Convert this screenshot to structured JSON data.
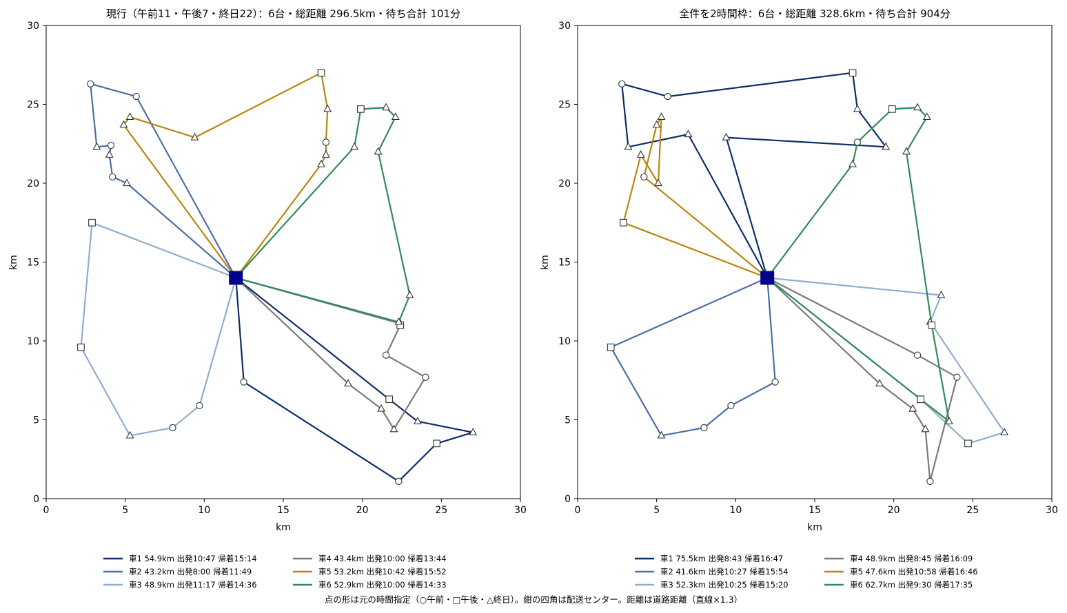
{
  "footnote": "点の形は元の時間指定（○午前・□午後・△終日）。紺の四角は配送センター。距離は道路距離（直線×1.3）",
  "chart_data": [
    {
      "type": "scatter",
      "title": "現行（午前11・午後7・終日22）：6台・総距離 296.5km・待ち合計 101分",
      "xlabel": "km",
      "ylabel": "km",
      "xlim": [
        0,
        30
      ],
      "ylim": [
        0,
        30
      ],
      "xticks": [
        "0",
        "5",
        "10",
        "15",
        "20",
        "25",
        "30"
      ],
      "yticks": [
        "0",
        "5",
        "10",
        "15",
        "20",
        "25",
        "30"
      ],
      "grid": false,
      "legend_position": "bottom",
      "depot": [
        12,
        14
      ],
      "routes": [
        {
          "name": "車1 54.9km 出発10:47 帰着15:14",
          "color": "#0b2d6b",
          "stops": [
            [
              12.5,
              7.4,
              "o"
            ],
            [
              22.3,
              1.1,
              "o"
            ],
            [
              24.7,
              3.5,
              "s"
            ],
            [
              27.0,
              4.2,
              "^"
            ],
            [
              23.5,
              4.9,
              "^"
            ],
            [
              21.7,
              6.3,
              "s"
            ]
          ]
        },
        {
          "name": "車2 43.2km 出発8:00 帰着11:49",
          "color": "#4a6fa5",
          "stops": [
            [
              5.7,
              25.5,
              "o"
            ],
            [
              2.8,
              26.3,
              "o"
            ],
            [
              3.2,
              22.3,
              "^"
            ],
            [
              4.1,
              22.4,
              "o"
            ],
            [
              4.0,
              21.8,
              "^"
            ],
            [
              4.2,
              20.4,
              "o"
            ],
            [
              5.1,
              20.0,
              "^"
            ]
          ]
        },
        {
          "name": "車3 48.9km 出発11:17 帰着14:36",
          "color": "#8fadd1",
          "stops": [
            [
              2.9,
              17.5,
              "s"
            ],
            [
              2.2,
              9.6,
              "s"
            ],
            [
              5.3,
              4.0,
              "^"
            ],
            [
              8.0,
              4.5,
              "o"
            ],
            [
              9.7,
              5.9,
              "o"
            ]
          ]
        },
        {
          "name": "車4 43.4km 出発10:00 帰着13:44",
          "color": "#7a7a7a",
          "stops": [
            [
              22.4,
              11.1,
              "^"
            ],
            [
              22.4,
              11.0,
              "s"
            ],
            [
              21.5,
              9.1,
              "o"
            ],
            [
              24.0,
              7.7,
              "o"
            ],
            [
              22.0,
              4.4,
              "^"
            ],
            [
              21.2,
              5.7,
              "^"
            ],
            [
              19.1,
              7.3,
              "^"
            ]
          ]
        },
        {
          "name": "車5 53.2km 出発10:42 帰着15:52",
          "color": "#b8860b",
          "stops": [
            [
              17.4,
              21.2,
              "^"
            ],
            [
              17.7,
              21.8,
              "^"
            ],
            [
              17.7,
              22.6,
              "o"
            ],
            [
              17.8,
              24.7,
              "^"
            ],
            [
              17.4,
              27.0,
              "s"
            ],
            [
              9.4,
              22.9,
              "^"
            ],
            [
              5.3,
              24.2,
              "^"
            ],
            [
              4.9,
              23.7,
              "^"
            ]
          ]
        },
        {
          "name": "車6 52.9km 出発10:00 帰着14:33",
          "color": "#2e8b57",
          "stops": [
            [
              19.5,
              22.3,
              "^"
            ],
            [
              19.9,
              24.7,
              "s"
            ],
            [
              21.5,
              24.8,
              "^"
            ],
            [
              22.1,
              24.2,
              "^"
            ],
            [
              21.0,
              22.0,
              "^"
            ],
            [
              23.0,
              12.9,
              "^"
            ],
            [
              22.3,
              11.2,
              "^"
            ]
          ]
        }
      ]
    },
    {
      "type": "scatter",
      "title": "全件を2時間枠：6台・総距離 328.6km・待ち合計 904分",
      "xlabel": "km",
      "ylabel": "km",
      "xlim": [
        0,
        30
      ],
      "ylim": [
        0,
        30
      ],
      "xticks": [
        "0",
        "5",
        "10",
        "15",
        "20",
        "25",
        "30"
      ],
      "yticks": [
        "0",
        "5",
        "10",
        "15",
        "20",
        "25",
        "30"
      ],
      "grid": false,
      "legend_position": "bottom",
      "depot": [
        12,
        14
      ],
      "routes": [
        {
          "name": "車1 75.5km 出発8:43 帰着16:47",
          "color": "#0b2d6b",
          "stops": [
            [
              9.4,
              22.9,
              "^"
            ],
            [
              19.5,
              22.3,
              "^"
            ],
            [
              17.7,
              24.7,
              "^"
            ],
            [
              17.4,
              27.0,
              "s"
            ],
            [
              5.7,
              25.5,
              "o"
            ],
            [
              2.8,
              26.3,
              "o"
            ],
            [
              3.2,
              22.3,
              "^"
            ],
            [
              7.0,
              23.1,
              "^"
            ]
          ]
        },
        {
          "name": "車2 41.6km 出発10:27 帰着15:54",
          "color": "#4a6fa5",
          "stops": [
            [
              2.1,
              9.6,
              "s"
            ],
            [
              5.3,
              4.0,
              "^"
            ],
            [
              8.0,
              4.5,
              "o"
            ],
            [
              9.7,
              5.9,
              "o"
            ],
            [
              12.5,
              7.4,
              "o"
            ]
          ]
        },
        {
          "name": "車3 52.3km 出発10:25 帰着15:20",
          "color": "#8fadd1",
          "stops": [
            [
              23.0,
              12.9,
              "^"
            ],
            [
              22.3,
              11.2,
              "^"
            ],
            [
              27.0,
              4.2,
              "^"
            ],
            [
              24.7,
              3.5,
              "s"
            ],
            [
              21.7,
              6.3,
              "s"
            ]
          ]
        },
        {
          "name": "車4 48.9km 出発8:45 帰着16:09",
          "color": "#7a7a7a",
          "stops": [
            [
              21.5,
              9.1,
              "o"
            ],
            [
              24.0,
              7.7,
              "o"
            ],
            [
              22.3,
              1.1,
              "o"
            ],
            [
              22.0,
              4.4,
              "^"
            ],
            [
              21.2,
              5.7,
              "^"
            ],
            [
              19.1,
              7.3,
              "^"
            ]
          ]
        },
        {
          "name": "車5 47.6km 出発10:58 帰着16:46",
          "color": "#b8860b",
          "stops": [
            [
              4.2,
              20.4,
              "o"
            ],
            [
              5.0,
              23.7,
              "^"
            ],
            [
              5.3,
              24.2,
              "^"
            ],
            [
              5.1,
              20.0,
              "^"
            ],
            [
              4.0,
              21.8,
              "^"
            ],
            [
              2.9,
              17.5,
              "s"
            ]
          ]
        },
        {
          "name": "車6 62.7km 出発9:30 帰着17:35",
          "color": "#2e8b57",
          "stops": [
            [
              17.4,
              21.2,
              "^"
            ],
            [
              17.7,
              22.6,
              "o"
            ],
            [
              19.9,
              24.7,
              "s"
            ],
            [
              21.5,
              24.8,
              "^"
            ],
            [
              22.1,
              24.2,
              "^"
            ],
            [
              20.8,
              22.0,
              "^"
            ],
            [
              22.4,
              11.0,
              "s"
            ],
            [
              23.5,
              4.9,
              "^"
            ],
            [
              21.7,
              6.3,
              "s"
            ]
          ]
        }
      ]
    }
  ]
}
